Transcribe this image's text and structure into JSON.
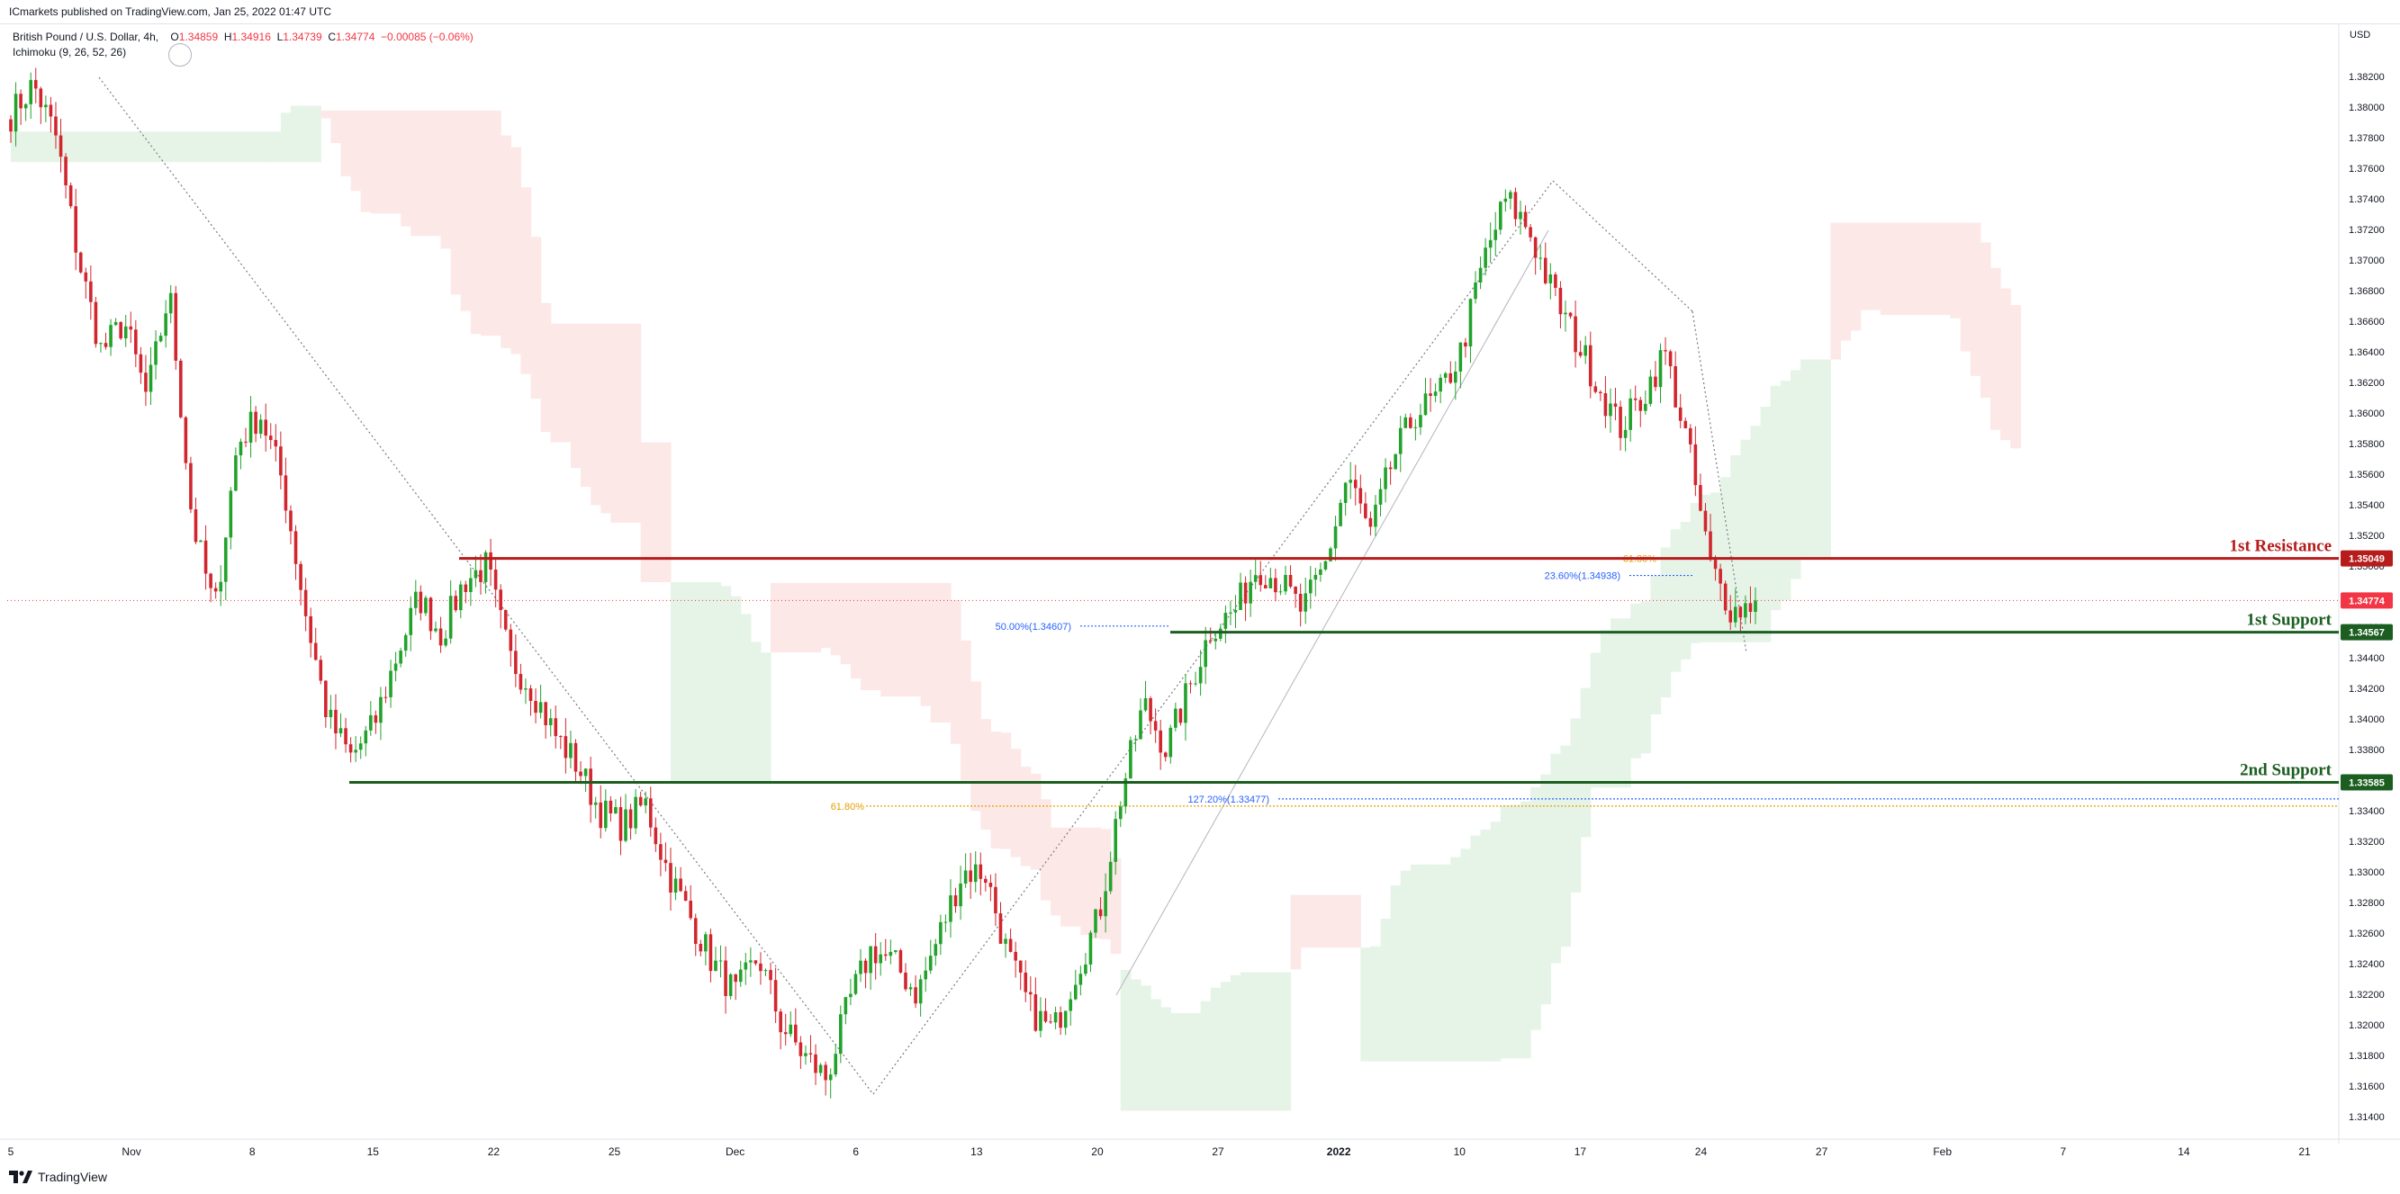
{
  "header": {
    "published": "ICmarkets published on TradingView.com, Jan 25, 2022 01:47 UTC"
  },
  "legend": {
    "symbol": "British Pound / U.S. Dollar, 4h,",
    "o_label": "O",
    "o_value": "1.34859",
    "h_label": "H",
    "h_value": "1.34916",
    "l_label": "L",
    "l_value": "1.34739",
    "c_label": "C",
    "c_value": "1.34774",
    "change": "−0.00085 (−0.06%)",
    "indicator": "Ichimoku (9, 26, 52, 26)"
  },
  "brand": {
    "name": "TradingView"
  },
  "colors": {
    "bull": "#22a22b",
    "bear": "#d2262e",
    "resistance": "#b71c1c",
    "support": "#1b5e20",
    "fib_blue": "#2962ff",
    "fib_orange": "#e3a000",
    "cloud_green": "#e6f4e8",
    "cloud_red": "#fde8e8"
  },
  "chart_data": {
    "type": "candlestick",
    "instrument": "British Pound / U.S. Dollar",
    "timeframe": "4h",
    "currency_label": "USD",
    "ylim": [
      1.313,
      1.385
    ],
    "price_ticks": [
      "1.38200",
      "1.38000",
      "1.37800",
      "1.37600",
      "1.37400",
      "1.37200",
      "1.37000",
      "1.36800",
      "1.36600",
      "1.36400",
      "1.36200",
      "1.36000",
      "1.35800",
      "1.35600",
      "1.35400",
      "1.35200",
      "1.35000",
      "1.34800",
      "1.34600",
      "1.34400",
      "1.34200",
      "1.34000",
      "1.33800",
      "1.33600",
      "1.33400",
      "1.33200",
      "1.33000",
      "1.32800",
      "1.32600",
      "1.32400",
      "1.32200",
      "1.32000",
      "1.31800",
      "1.31600",
      "1.31400"
    ],
    "time_ticks": [
      {
        "label": "5",
        "bold": false
      },
      {
        "label": "Nov",
        "bold": false
      },
      {
        "label": "8",
        "bold": false
      },
      {
        "label": "15",
        "bold": false
      },
      {
        "label": "22",
        "bold": false
      },
      {
        "label": "25",
        "bold": false
      },
      {
        "label": "Dec",
        "bold": false
      },
      {
        "label": "6",
        "bold": false
      },
      {
        "label": "13",
        "bold": false
      },
      {
        "label": "20",
        "bold": false
      },
      {
        "label": "27",
        "bold": false
      },
      {
        "label": "2022",
        "bold": true
      },
      {
        "label": "10",
        "bold": false
      },
      {
        "label": "17",
        "bold": false
      },
      {
        "label": "24",
        "bold": false
      },
      {
        "label": "27",
        "bold": false
      },
      {
        "label": "Feb",
        "bold": false
      },
      {
        "label": "7",
        "bold": false
      },
      {
        "label": "14",
        "bold": false
      },
      {
        "label": "21",
        "bold": false
      }
    ],
    "path": [
      1.3795,
      1.3815,
      1.378,
      1.37,
      1.364,
      1.366,
      1.361,
      1.368,
      1.353,
      1.347,
      1.358,
      1.36,
      1.3555,
      1.347,
      1.34,
      1.3375,
      1.3395,
      1.344,
      1.348,
      1.3455,
      1.349,
      1.35,
      1.344,
      1.342,
      1.339,
      1.337,
      1.334,
      1.333,
      1.3345,
      1.33,
      1.327,
      1.324,
      1.322,
      1.3245,
      1.32,
      1.318,
      1.3165,
      1.3215,
      1.325,
      1.324,
      1.322,
      1.326,
      1.33,
      1.33,
      1.3245,
      1.321,
      1.3195,
      1.3235,
      1.327,
      1.335,
      1.341,
      1.338,
      1.342,
      1.346,
      1.347,
      1.35,
      1.349,
      1.347,
      1.35,
      1.356,
      1.352,
      1.357,
      1.36,
      1.361,
      1.364,
      1.37,
      1.374,
      1.372,
      1.368,
      1.365,
      1.362,
      1.359,
      1.361,
      1.364,
      1.358,
      1.35,
      1.347,
      1.3477
    ],
    "last_price": 1.34774,
    "levels": [
      {
        "name": "1st Resistance",
        "price": 1.35049,
        "price_label": "1.35049"
      },
      {
        "name": "1st Support",
        "price": 1.34567,
        "price_label": "1.34567"
      },
      {
        "name": "2nd Support",
        "price": 1.33585,
        "price_label": "1.33585"
      }
    ],
    "last_price_label": "1.34774",
    "fib_labels": [
      {
        "text": "50.00%(1.34607)",
        "price": 1.34607
      },
      {
        "text": "23.60%(1.34938)",
        "price": 1.34938
      },
      {
        "text": "61.80%",
        "price": 1.35049
      },
      {
        "text": "127.20%(1.33477)",
        "price": 1.33477
      },
      {
        "text": "61.80%",
        "price": 1.3343
      }
    ]
  }
}
